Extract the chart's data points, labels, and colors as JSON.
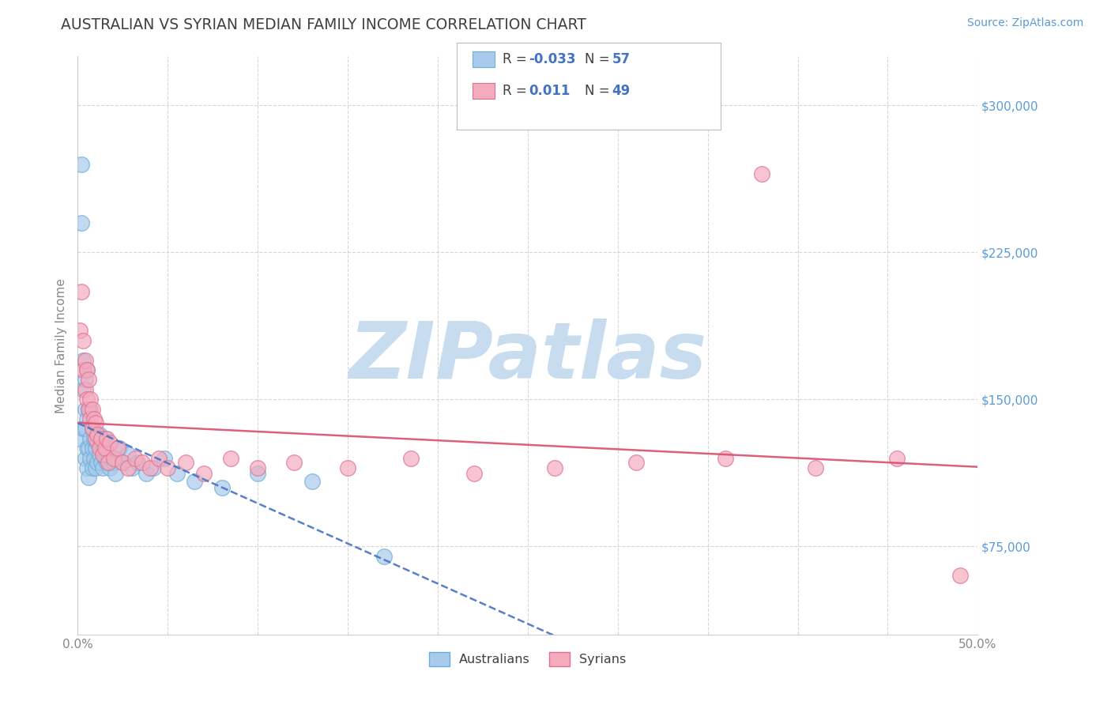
{
  "title": "AUSTRALIAN VS SYRIAN MEDIAN FAMILY INCOME CORRELATION CHART",
  "source_text": "Source: ZipAtlas.com",
  "ylabel_text": "Median Family Income",
  "x_min": 0.0,
  "x_max": 0.5,
  "y_min": 30000,
  "y_max": 325000,
  "x_ticks": [
    0.0,
    0.05,
    0.1,
    0.15,
    0.2,
    0.25,
    0.3,
    0.35,
    0.4,
    0.45,
    0.5
  ],
  "x_tick_labels_show": [
    "0.0%",
    "",
    "",
    "",
    "",
    "",
    "",
    "",
    "",
    "",
    "50.0%"
  ],
  "y_ticks": [
    75000,
    150000,
    225000,
    300000
  ],
  "y_tick_labels": [
    "$75,000",
    "$150,000",
    "$225,000",
    "$300,000"
  ],
  "legend_R_blue": "-0.033",
  "legend_N_blue": "57",
  "legend_R_pink": "0.011",
  "legend_N_pink": "49",
  "legend_label_blue": "Australians",
  "legend_label_pink": "Syrians",
  "blue_color": "#A8CAEC",
  "pink_color": "#F4ABBE",
  "blue_edge_color": "#6BAED6",
  "pink_edge_color": "#E07090",
  "blue_line_color": "#4472C4",
  "pink_line_color": "#D94F6E",
  "background_color": "#FFFFFF",
  "grid_color": "#CCCCCC",
  "title_color": "#404040",
  "watermark_text": "ZIPatlas",
  "watermark_color": "#C8DCF0",
  "source_color": "#5B9BD5",
  "ytick_color": "#5B9BD5",
  "xtick_color": "#888888",
  "australians_x": [
    0.001,
    0.002,
    0.002,
    0.003,
    0.003,
    0.003,
    0.004,
    0.004,
    0.004,
    0.004,
    0.005,
    0.005,
    0.005,
    0.005,
    0.006,
    0.006,
    0.006,
    0.007,
    0.007,
    0.007,
    0.008,
    0.008,
    0.008,
    0.009,
    0.009,
    0.01,
    0.01,
    0.011,
    0.011,
    0.012,
    0.012,
    0.013,
    0.013,
    0.014,
    0.015,
    0.015,
    0.016,
    0.017,
    0.018,
    0.019,
    0.02,
    0.021,
    0.022,
    0.023,
    0.025,
    0.028,
    0.03,
    0.033,
    0.038,
    0.042,
    0.048,
    0.055,
    0.065,
    0.08,
    0.1,
    0.13,
    0.17
  ],
  "australians_y": [
    130000,
    270000,
    240000,
    135000,
    155000,
    170000,
    120000,
    135000,
    145000,
    160000,
    115000,
    125000,
    140000,
    165000,
    110000,
    125000,
    145000,
    120000,
    130000,
    145000,
    115000,
    125000,
    135000,
    120000,
    130000,
    115000,
    125000,
    118000,
    128000,
    122000,
    132000,
    118000,
    128000,
    115000,
    120000,
    130000,
    118000,
    122000,
    115000,
    120000,
    118000,
    112000,
    120000,
    125000,
    118000,
    122000,
    115000,
    118000,
    112000,
    115000,
    120000,
    112000,
    108000,
    105000,
    112000,
    108000,
    70000
  ],
  "syrians_x": [
    0.001,
    0.002,
    0.003,
    0.003,
    0.004,
    0.004,
    0.005,
    0.005,
    0.006,
    0.006,
    0.007,
    0.007,
    0.008,
    0.008,
    0.009,
    0.01,
    0.01,
    0.011,
    0.012,
    0.013,
    0.014,
    0.015,
    0.016,
    0.017,
    0.018,
    0.02,
    0.022,
    0.025,
    0.028,
    0.032,
    0.036,
    0.04,
    0.045,
    0.05,
    0.06,
    0.07,
    0.085,
    0.1,
    0.12,
    0.15,
    0.185,
    0.22,
    0.265,
    0.31,
    0.36,
    0.41,
    0.455,
    0.49,
    0.38
  ],
  "syrians_y": [
    185000,
    205000,
    180000,
    165000,
    170000,
    155000,
    165000,
    150000,
    160000,
    145000,
    150000,
    140000,
    145000,
    135000,
    140000,
    130000,
    138000,
    132000,
    125000,
    130000,
    122000,
    125000,
    130000,
    118000,
    128000,
    120000,
    125000,
    118000,
    115000,
    120000,
    118000,
    115000,
    120000,
    115000,
    118000,
    112000,
    120000,
    115000,
    118000,
    115000,
    120000,
    112000,
    115000,
    118000,
    120000,
    115000,
    120000,
    60000,
    265000
  ]
}
